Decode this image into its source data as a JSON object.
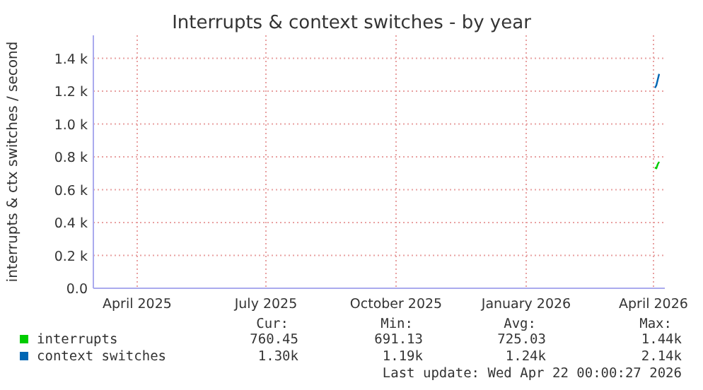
{
  "chart_data": {
    "type": "line",
    "title": "Interrupts & context switches - by year",
    "ylabel": "interrupts & ctx switches / second",
    "xlim": [
      "2025-03-01",
      "2026-04-09"
    ],
    "xticks": [
      {
        "value": "2025-04-01",
        "label": "April 2025"
      },
      {
        "value": "2025-07-01",
        "label": "July 2025"
      },
      {
        "value": "2025-10-01",
        "label": "October 2025"
      },
      {
        "value": "2026-01-01",
        "label": "January 2026"
      },
      {
        "value": "2026-04-01",
        "label": "April 2026"
      }
    ],
    "ylim": [
      0,
      1540
    ],
    "yticks": [
      {
        "value": 0,
        "label": "0.0"
      },
      {
        "value": 200,
        "label": "0.2 k"
      },
      {
        "value": 400,
        "label": "0.4 k"
      },
      {
        "value": 600,
        "label": "0.6 k"
      },
      {
        "value": 800,
        "label": "0.8 k"
      },
      {
        "value": 1000,
        "label": "1.0 k"
      },
      {
        "value": 1200,
        "label": "1.2 k"
      },
      {
        "value": 1400,
        "label": "1.4 k"
      }
    ],
    "grid": true,
    "legend": "bottom",
    "series": [
      {
        "name": "interrupts",
        "color": "#00cc00",
        "x": [
          "2026-04-02",
          "2026-04-03",
          "2026-04-04",
          "2026-04-05"
        ],
        "values": [
          735,
          730,
          755,
          770
        ]
      },
      {
        "name": "context switches",
        "color": "#0066b3",
        "x": [
          "2026-04-02",
          "2026-04-03",
          "2026-04-04",
          "2026-04-05"
        ],
        "values": [
          1220,
          1235,
          1270,
          1305
        ]
      }
    ],
    "annotations": [
      "Cur:",
      "Min:",
      "Avg:",
      "Max:",
      "760.45",
      "691.13",
      "725.03",
      "1.44k",
      "1.30k",
      "1.19k",
      "1.24k",
      "2.14k",
      "Last update: Wed Apr 22 00:00:27 2026"
    ]
  }
}
